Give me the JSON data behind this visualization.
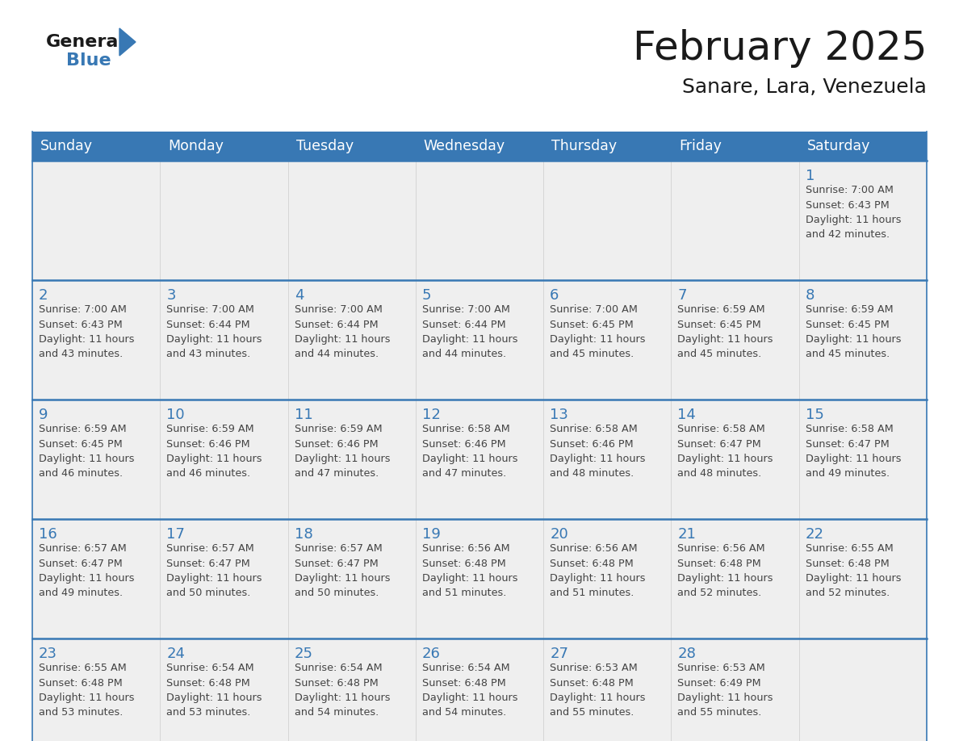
{
  "title": "February 2025",
  "subtitle": "Sanare, Lara, Venezuela",
  "header_bg_color": "#3878b4",
  "header_text_color": "#ffffff",
  "cell_bg_color": "#efefef",
  "day_number_color": "#3878b4",
  "text_color": "#444444",
  "line_color": "#3878b4",
  "border_color": "#cccccc",
  "days_of_week": [
    "Sunday",
    "Monday",
    "Tuesday",
    "Wednesday",
    "Thursday",
    "Friday",
    "Saturday"
  ],
  "weeks": [
    [
      {
        "day": null,
        "info": null
      },
      {
        "day": null,
        "info": null
      },
      {
        "day": null,
        "info": null
      },
      {
        "day": null,
        "info": null
      },
      {
        "day": null,
        "info": null
      },
      {
        "day": null,
        "info": null
      },
      {
        "day": 1,
        "info": "Sunrise: 7:00 AM\nSunset: 6:43 PM\nDaylight: 11 hours\nand 42 minutes."
      }
    ],
    [
      {
        "day": 2,
        "info": "Sunrise: 7:00 AM\nSunset: 6:43 PM\nDaylight: 11 hours\nand 43 minutes."
      },
      {
        "day": 3,
        "info": "Sunrise: 7:00 AM\nSunset: 6:44 PM\nDaylight: 11 hours\nand 43 minutes."
      },
      {
        "day": 4,
        "info": "Sunrise: 7:00 AM\nSunset: 6:44 PM\nDaylight: 11 hours\nand 44 minutes."
      },
      {
        "day": 5,
        "info": "Sunrise: 7:00 AM\nSunset: 6:44 PM\nDaylight: 11 hours\nand 44 minutes."
      },
      {
        "day": 6,
        "info": "Sunrise: 7:00 AM\nSunset: 6:45 PM\nDaylight: 11 hours\nand 45 minutes."
      },
      {
        "day": 7,
        "info": "Sunrise: 6:59 AM\nSunset: 6:45 PM\nDaylight: 11 hours\nand 45 minutes."
      },
      {
        "day": 8,
        "info": "Sunrise: 6:59 AM\nSunset: 6:45 PM\nDaylight: 11 hours\nand 45 minutes."
      }
    ],
    [
      {
        "day": 9,
        "info": "Sunrise: 6:59 AM\nSunset: 6:45 PM\nDaylight: 11 hours\nand 46 minutes."
      },
      {
        "day": 10,
        "info": "Sunrise: 6:59 AM\nSunset: 6:46 PM\nDaylight: 11 hours\nand 46 minutes."
      },
      {
        "day": 11,
        "info": "Sunrise: 6:59 AM\nSunset: 6:46 PM\nDaylight: 11 hours\nand 47 minutes."
      },
      {
        "day": 12,
        "info": "Sunrise: 6:58 AM\nSunset: 6:46 PM\nDaylight: 11 hours\nand 47 minutes."
      },
      {
        "day": 13,
        "info": "Sunrise: 6:58 AM\nSunset: 6:46 PM\nDaylight: 11 hours\nand 48 minutes."
      },
      {
        "day": 14,
        "info": "Sunrise: 6:58 AM\nSunset: 6:47 PM\nDaylight: 11 hours\nand 48 minutes."
      },
      {
        "day": 15,
        "info": "Sunrise: 6:58 AM\nSunset: 6:47 PM\nDaylight: 11 hours\nand 49 minutes."
      }
    ],
    [
      {
        "day": 16,
        "info": "Sunrise: 6:57 AM\nSunset: 6:47 PM\nDaylight: 11 hours\nand 49 minutes."
      },
      {
        "day": 17,
        "info": "Sunrise: 6:57 AM\nSunset: 6:47 PM\nDaylight: 11 hours\nand 50 minutes."
      },
      {
        "day": 18,
        "info": "Sunrise: 6:57 AM\nSunset: 6:47 PM\nDaylight: 11 hours\nand 50 minutes."
      },
      {
        "day": 19,
        "info": "Sunrise: 6:56 AM\nSunset: 6:48 PM\nDaylight: 11 hours\nand 51 minutes."
      },
      {
        "day": 20,
        "info": "Sunrise: 6:56 AM\nSunset: 6:48 PM\nDaylight: 11 hours\nand 51 minutes."
      },
      {
        "day": 21,
        "info": "Sunrise: 6:56 AM\nSunset: 6:48 PM\nDaylight: 11 hours\nand 52 minutes."
      },
      {
        "day": 22,
        "info": "Sunrise: 6:55 AM\nSunset: 6:48 PM\nDaylight: 11 hours\nand 52 minutes."
      }
    ],
    [
      {
        "day": 23,
        "info": "Sunrise: 6:55 AM\nSunset: 6:48 PM\nDaylight: 11 hours\nand 53 minutes."
      },
      {
        "day": 24,
        "info": "Sunrise: 6:54 AM\nSunset: 6:48 PM\nDaylight: 11 hours\nand 53 minutes."
      },
      {
        "day": 25,
        "info": "Sunrise: 6:54 AM\nSunset: 6:48 PM\nDaylight: 11 hours\nand 54 minutes."
      },
      {
        "day": 26,
        "info": "Sunrise: 6:54 AM\nSunset: 6:48 PM\nDaylight: 11 hours\nand 54 minutes."
      },
      {
        "day": 27,
        "info": "Sunrise: 6:53 AM\nSunset: 6:48 PM\nDaylight: 11 hours\nand 55 minutes."
      },
      {
        "day": 28,
        "info": "Sunrise: 6:53 AM\nSunset: 6:49 PM\nDaylight: 11 hours\nand 55 minutes."
      },
      {
        "day": null,
        "info": null
      }
    ]
  ],
  "logo_general_color": "#1a1a1a",
  "logo_blue_color": "#3878b4",
  "logo_triangle_color": "#3878b4"
}
